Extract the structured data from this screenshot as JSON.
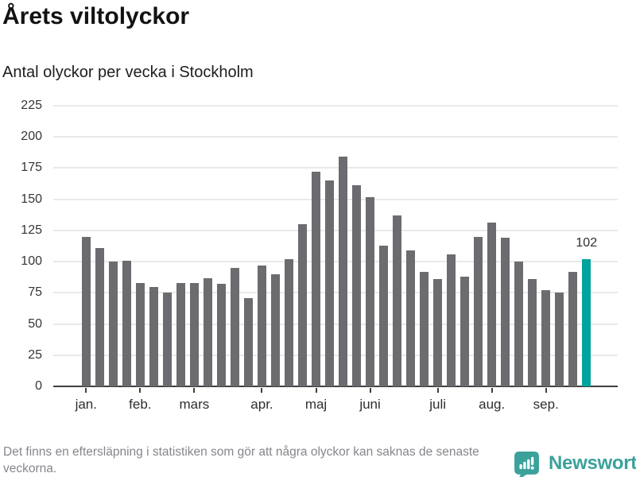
{
  "header": {
    "title": "Årets viltolyckor",
    "subtitle": "Antal olyckor per vecka i Stockholm"
  },
  "chart_data": {
    "type": "bar",
    "title": "Årets viltolyckor",
    "subtitle": "Antal olyckor per vecka i Stockholm",
    "xlabel": "",
    "ylabel": "",
    "ylim": [
      0,
      225
    ],
    "y_ticks": [
      0,
      25,
      50,
      75,
      100,
      125,
      150,
      175,
      200,
      225
    ],
    "grid": true,
    "legend_position": "none",
    "values": [
      120,
      111,
      100,
      101,
      83,
      80,
      75,
      83,
      83,
      87,
      82,
      95,
      71,
      97,
      90,
      102,
      130,
      172,
      165,
      184,
      161,
      152,
      113,
      137,
      109,
      92,
      86,
      106,
      88,
      120,
      131,
      119,
      100,
      86,
      77,
      75,
      92,
      102
    ],
    "month_ticks": [
      {
        "label": "jan.",
        "index": 0
      },
      {
        "label": "feb.",
        "index": 4
      },
      {
        "label": "mars",
        "index": 8
      },
      {
        "label": "apr.",
        "index": 13
      },
      {
        "label": "maj",
        "index": 17
      },
      {
        "label": "juni",
        "index": 21
      },
      {
        "label": "juli",
        "index": 26
      },
      {
        "label": "aug.",
        "index": 30
      },
      {
        "label": "sep.",
        "index": 34
      }
    ],
    "highlight": {
      "index": 37,
      "label": "102"
    },
    "colors": {
      "bar": "#6b6b70",
      "highlight": "#00a39d",
      "gridline": "#e9e9e9",
      "axis": "#3f3f3f"
    }
  },
  "footer": {
    "note": "Det finns en eftersläpning i statistiken som gör att några olyckor kan saknas de senaste veckorna.",
    "brand": "Newsworthy"
  }
}
